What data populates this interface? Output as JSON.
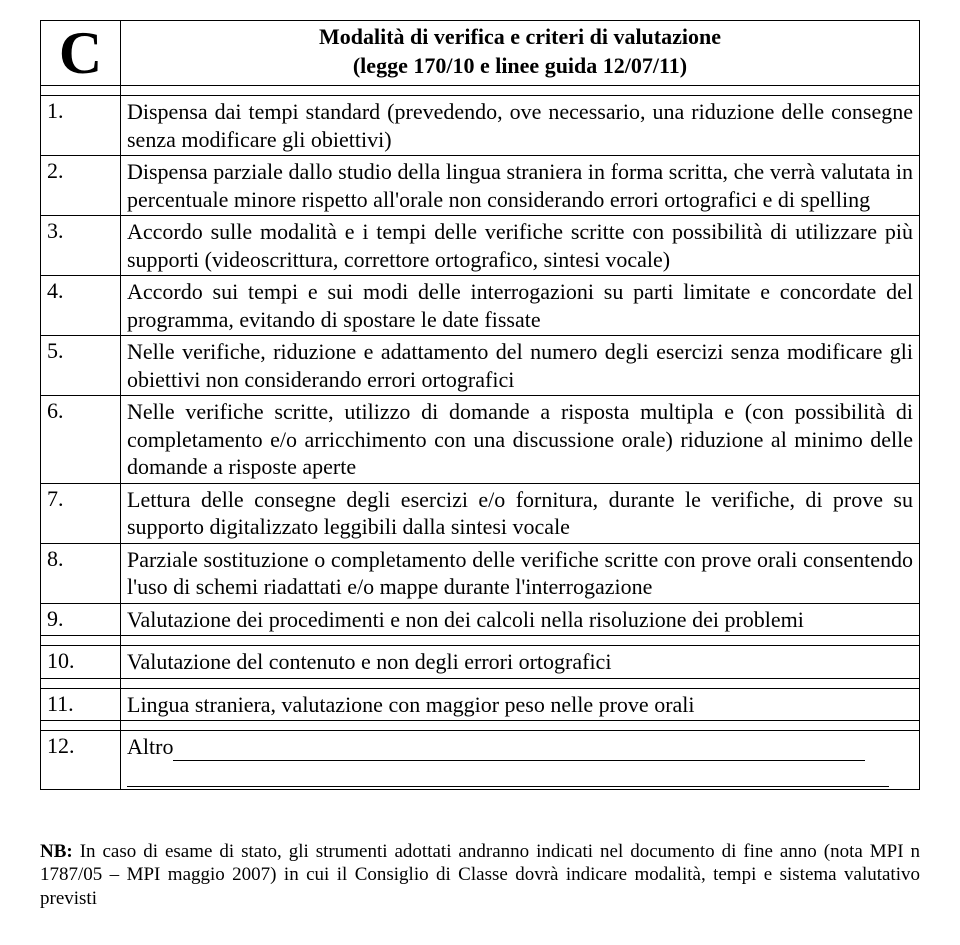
{
  "header": {
    "letter": "C",
    "title_line1": "Modalità di verifica e criteri di valutazione",
    "title_line2": "(legge 170/10 e linee guida 12/07/11)"
  },
  "rows": [
    {
      "num": "1.",
      "text": "Dispensa dai tempi standard (prevedendo, ove necessario, una riduzione delle consegne senza modificare gli obiettivi)"
    },
    {
      "num": "2.",
      "text": "Dispensa parziale dallo studio della lingua straniera in forma scritta, che verrà valutata in percentuale minore rispetto all'orale non considerando errori ortografici e di spelling"
    },
    {
      "num": "3.",
      "text": "Accordo sulle modalità e i tempi delle verifiche scritte con possibilità di utilizzare più supporti (videoscrittura, correttore ortografico, sintesi vocale)"
    },
    {
      "num": "4.",
      "text": "Accordo sui tempi e sui modi delle interrogazioni su parti limitate e concordate del programma, evitando di spostare le date fissate"
    },
    {
      "num": "5.",
      "text": "Nelle verifiche, riduzione e adattamento del numero degli esercizi senza modificare gli obiettivi non considerando errori ortografici"
    },
    {
      "num": "6.",
      "text": "Nelle verifiche scritte, utilizzo di domande a risposta multipla e (con possibilità di completamento e/o arricchimento con una discussione orale) riduzione al minimo delle domande a risposte aperte"
    },
    {
      "num": "7.",
      "text": "Lettura delle consegne degli esercizi e/o fornitura, durante le verifiche, di prove su supporto digitalizzato leggibili dalla sintesi vocale"
    },
    {
      "num": "8.",
      "text": "Parziale sostituzione o completamento delle verifiche scritte con prove orali consentendo l'uso di schemi riadattati e/o mappe durante l'interrogazione"
    },
    {
      "num": "9.",
      "text": "Valutazione dei procedimenti e non dei calcoli nella risoluzione dei problemi"
    },
    {
      "num": "10.",
      "text": "Valutazione del contenuto e non degli errori ortografici"
    },
    {
      "num": "11.",
      "text": "Lingua straniera, valutazione con maggior peso nelle prove orali"
    }
  ],
  "altro": {
    "num": "12.",
    "label": "Altro"
  },
  "footnote": {
    "nb": "NB:",
    "text": " In caso di esame di stato, gli strumenti adottati andranno indicati nel documento di fine anno (nota MPI n 1787/05 – MPI maggio 2007) in cui il Consiglio di Classe dovrà indicare modalità, tempi e sistema valutativo previsti"
  }
}
